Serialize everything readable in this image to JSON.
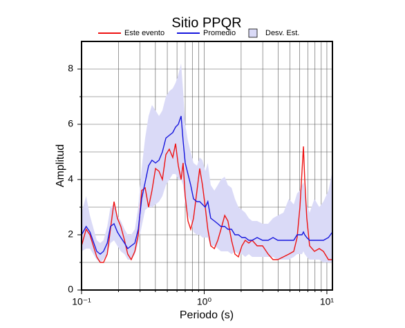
{
  "chart_data": {
    "type": "line",
    "title": "Sitio PPQR",
    "xlabel": "Periodo (s)",
    "ylabel": "Amplitud",
    "xscale": "log",
    "xlim": [
      0.1,
      11.1
    ],
    "ylim": [
      0,
      9
    ],
    "xticks": [
      {
        "value": 0.1,
        "label": "10⁻¹"
      },
      {
        "value": 1,
        "label": "10⁰"
      },
      {
        "value": 10,
        "label": "10¹"
      }
    ],
    "xminor": [
      0.2,
      0.3,
      0.4,
      0.5,
      0.6,
      0.7,
      0.8,
      0.9,
      2,
      3,
      4,
      5,
      6,
      7,
      8,
      9
    ],
    "yticks": [
      0,
      2,
      4,
      6,
      8
    ],
    "yminor": [
      1,
      3,
      5,
      7
    ],
    "grid": true,
    "x": [
      0.1,
      0.109,
      0.117,
      0.133,
      0.142,
      0.151,
      0.162,
      0.172,
      0.184,
      0.196,
      0.209,
      0.224,
      0.238,
      0.254,
      0.272,
      0.29,
      0.309,
      0.33,
      0.352,
      0.375,
      0.401,
      0.428,
      0.456,
      0.487,
      0.519,
      0.554,
      0.584,
      0.615,
      0.648,
      0.673,
      0.7,
      0.737,
      0.776,
      0.818,
      0.873,
      0.919,
      0.968,
      1.02,
      1.07,
      1.13,
      1.21,
      1.29,
      1.37,
      1.47,
      1.56,
      1.67,
      1.78,
      1.9,
      2.03,
      2.16,
      2.31,
      2.46,
      2.7,
      2.99,
      3.32,
      3.64,
      3.98,
      4.42,
      4.9,
      5.37,
      5.72,
      6.03,
      6.27,
      6.44,
      6.6,
      6.86,
      7.23,
      7.92,
      8.67,
      9.37,
      10.3,
      11.1
    ],
    "series": [
      {
        "name": "Este evento",
        "color": "#ee1111",
        "values": [
          1.6,
          2.2,
          2.0,
          1.2,
          1.0,
          1.0,
          1.3,
          2.2,
          3.2,
          2.6,
          2.3,
          1.8,
          1.3,
          1.1,
          1.4,
          2.0,
          3.6,
          3.7,
          3.0,
          3.6,
          4.4,
          4.3,
          4.0,
          4.9,
          5.1,
          4.8,
          5.3,
          4.5,
          4.0,
          4.6,
          3.4,
          2.5,
          2.2,
          2.6,
          3.6,
          4.4,
          3.8,
          3.0,
          2.2,
          1.6,
          1.5,
          1.8,
          2.2,
          2.7,
          2.5,
          1.8,
          1.3,
          1.2,
          1.6,
          1.8,
          1.7,
          1.8,
          1.6,
          1.6,
          1.3,
          1.1,
          1.1,
          1.2,
          1.3,
          1.4,
          1.9,
          3.0,
          4.3,
          5.2,
          4.0,
          2.6,
          1.6,
          1.4,
          1.5,
          1.4,
          1.1,
          1.1
        ]
      },
      {
        "name": "Promedio",
        "color": "#1515dd",
        "values": [
          2.0,
          2.3,
          2.1,
          1.4,
          1.3,
          1.4,
          1.7,
          2.3,
          2.4,
          2.1,
          1.9,
          1.7,
          1.5,
          1.6,
          1.7,
          2.2,
          3.3,
          3.9,
          4.5,
          4.7,
          4.6,
          4.7,
          5.0,
          5.5,
          5.6,
          5.7,
          5.9,
          6.0,
          6.3,
          5.4,
          4.6,
          4.2,
          3.8,
          3.3,
          3.2,
          3.2,
          3.1,
          3.0,
          3.2,
          2.6,
          2.5,
          2.4,
          2.3,
          2.3,
          2.2,
          2.2,
          2.0,
          2.0,
          1.9,
          1.9,
          1.8,
          1.8,
          1.9,
          1.8,
          1.8,
          1.9,
          1.8,
          1.8,
          1.8,
          1.8,
          2.0,
          2.0,
          2.0,
          2.1,
          2.0,
          1.9,
          1.8,
          1.8,
          1.8,
          1.8,
          1.9,
          2.1
        ]
      },
      {
        "name": "Desv. Est.",
        "color": "#dadaf7",
        "upper": [
          2.8,
          3.4,
          2.7,
          1.8,
          1.7,
          1.8,
          2.3,
          3.0,
          3.1,
          2.7,
          2.5,
          2.2,
          2.0,
          2.0,
          2.2,
          3.0,
          4.4,
          5.5,
          6.3,
          6.7,
          6.5,
          6.3,
          6.5,
          7.0,
          7.2,
          7.3,
          7.5,
          7.8,
          8.2,
          7.2,
          6.0,
          5.4,
          5.0,
          4.6,
          4.5,
          4.8,
          4.7,
          4.3,
          4.6,
          3.8,
          3.6,
          3.8,
          4.0,
          4.1,
          3.8,
          3.7,
          3.3,
          3.0,
          2.9,
          2.8,
          2.6,
          2.5,
          2.5,
          2.4,
          2.4,
          2.6,
          2.7,
          2.8,
          3.3,
          3.1,
          3.5,
          3.6,
          3.8,
          3.9,
          3.6,
          3.1,
          2.8,
          3.3,
          3.0,
          3.2,
          3.6,
          4.3
        ],
        "lower": [
          1.4,
          1.5,
          1.5,
          1.1,
          1.0,
          1.1,
          1.3,
          1.7,
          1.8,
          1.6,
          1.4,
          1.3,
          1.1,
          1.1,
          1.3,
          1.7,
          2.3,
          2.9,
          3.0,
          3.0,
          3.1,
          3.2,
          3.4,
          3.8,
          4.0,
          4.2,
          4.2,
          4.0,
          4.0,
          3.8,
          3.1,
          2.7,
          2.5,
          2.1,
          2.0,
          2.0,
          1.9,
          1.9,
          1.9,
          1.6,
          1.6,
          1.5,
          1.4,
          1.4,
          1.4,
          1.3,
          1.4,
          1.3,
          1.3,
          1.2,
          1.3,
          1.2,
          1.2,
          1.2,
          1.2,
          1.2,
          1.1,
          1.1,
          1.1,
          1.2,
          1.3,
          1.3,
          1.3,
          1.4,
          1.3,
          1.2,
          1.1,
          1.1,
          1.1,
          1.0,
          1.0,
          1.0
        ]
      }
    ]
  }
}
